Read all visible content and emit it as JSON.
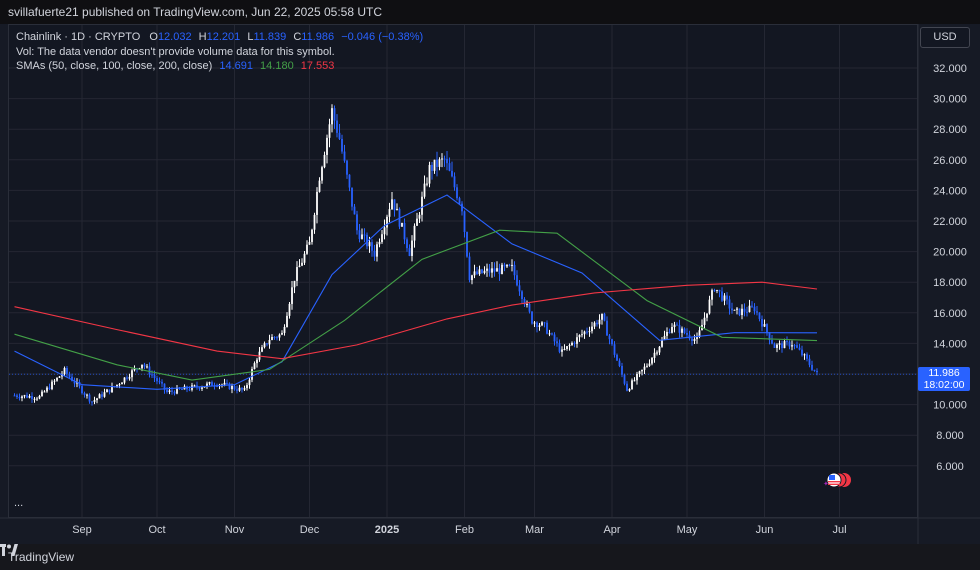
{
  "header": {
    "published_text": "svillafuerte21 published on TradingView.com, Jun 22, 2025 05:58 UTC"
  },
  "legend": {
    "symbol": "Chainlink · 1D · CRYPTO",
    "o_label": "O",
    "o_value": "12.032",
    "h_label": "H",
    "h_value": "12.201",
    "l_label": "L",
    "l_value": "11.839",
    "c_label": "C",
    "c_value": "11.986",
    "change": "−0.046 (−0.38%)",
    "vol_line": "Vol: The data vendor doesn't provide volume data for this symbol.",
    "sma_label": "SMAs (50, close, 100, close, 200, close)",
    "sma50": "14.691",
    "sma100": "14.180",
    "sma200": "17.553"
  },
  "currency_button": "USD",
  "price_tag": {
    "price": "11.986",
    "countdown": "18:02:00"
  },
  "more_indicator": "...",
  "footer": {
    "brand": "TradingView"
  },
  "colors": {
    "up": "#ffffff",
    "down": "#2962ff",
    "sma50": "#2962ff",
    "sma100": "#43a047",
    "sma200": "#f23645",
    "price_tag": "#2962ff"
  },
  "chart_data": {
    "type": "candlestick",
    "title": "Chainlink · 1D · CRYPTO",
    "currency": "USD",
    "y_ticks": [
      "32.000",
      "30.000",
      "28.000",
      "26.000",
      "24.000",
      "22.000",
      "20.000",
      "18.000",
      "16.000",
      "14.000",
      "12.000",
      "10.000",
      "8.000",
      "6.000"
    ],
    "x_ticks": [
      "Sep",
      "Oct",
      "Nov",
      "Dec",
      "2025",
      "Feb",
      "Mar",
      "Apr",
      "May",
      "Jun",
      "Jul"
    ],
    "ylim": [
      4.5,
      33.5
    ],
    "last_close": 11.986,
    "close_series": {
      "dates": [
        "2024-08-05",
        "2024-08-15",
        "2024-08-25",
        "2024-09-05",
        "2024-09-15",
        "2024-09-25",
        "2024-10-05",
        "2024-10-15",
        "2024-10-25",
        "2024-11-05",
        "2024-11-10",
        "2024-11-15",
        "2024-11-20",
        "2024-11-25",
        "2024-12-01",
        "2024-12-05",
        "2024-12-10",
        "2024-12-13",
        "2024-12-20",
        "2024-12-27",
        "2025-01-03",
        "2025-01-10",
        "2025-01-18",
        "2025-01-24",
        "2025-01-31",
        "2025-02-03",
        "2025-02-10",
        "2025-02-20",
        "2025-02-28",
        "2025-03-05",
        "2025-03-12",
        "2025-03-20",
        "2025-03-28",
        "2025-04-07",
        "2025-04-15",
        "2025-04-25",
        "2025-05-05",
        "2025-05-12",
        "2025-05-20",
        "2025-05-28",
        "2025-06-05",
        "2025-06-12",
        "2025-06-17",
        "2025-06-22"
      ],
      "close": [
        10.6,
        10.5,
        12.2,
        10.2,
        11.3,
        12.7,
        10.8,
        11.1,
        11.4,
        10.9,
        13.1,
        14.3,
        14.6,
        18.3,
        20.5,
        25.0,
        29.2,
        27.4,
        21.4,
        19.9,
        23.5,
        20.0,
        25.4,
        26.0,
        22.9,
        18.4,
        18.7,
        18.9,
        15.5,
        15.1,
        13.4,
        14.6,
        15.7,
        11.0,
        12.6,
        15.2,
        14.2,
        17.7,
        16.0,
        16.3,
        13.8,
        14.0,
        13.1,
        11.986
      ]
    },
    "series": [
      {
        "name": "SMA 50",
        "last": 14.691
      },
      {
        "name": "SMA 100",
        "last": 14.18
      },
      {
        "name": "SMA 200",
        "last": 17.553
      }
    ],
    "sma_series": {
      "sma50": {
        "dates": [
          "2024-08-05",
          "2024-09-01",
          "2024-10-01",
          "2024-11-01",
          "2024-11-20",
          "2024-12-10",
          "2024-12-31",
          "2025-01-25",
          "2025-02-20",
          "2025-03-20",
          "2025-04-20",
          "2025-05-20",
          "2025-06-22"
        ],
        "values": [
          13.5,
          11.3,
          11.0,
          11.3,
          12.8,
          18.5,
          21.7,
          23.7,
          20.5,
          18.6,
          14.2,
          14.7,
          14.691
        ]
      },
      "sma100": {
        "dates": [
          "2024-08-05",
          "2024-09-15",
          "2024-10-15",
          "2024-11-15",
          "2024-12-15",
          "2025-01-15",
          "2025-02-15",
          "2025-03-10",
          "2025-04-15",
          "2025-05-15",
          "2025-06-22"
        ],
        "values": [
          14.6,
          12.6,
          11.6,
          12.3,
          15.5,
          19.5,
          21.4,
          21.2,
          16.8,
          14.4,
          14.18
        ]
      },
      "sma200": {
        "dates": [
          "2024-08-05",
          "2024-09-15",
          "2024-10-25",
          "2024-11-20",
          "2024-12-20",
          "2025-01-25",
          "2025-02-20",
          "2025-03-25",
          "2025-05-01",
          "2025-05-31",
          "2025-06-22"
        ],
        "values": [
          16.4,
          14.9,
          13.5,
          13.0,
          13.9,
          15.6,
          16.5,
          17.3,
          17.8,
          18.0,
          17.553
        ]
      }
    }
  }
}
